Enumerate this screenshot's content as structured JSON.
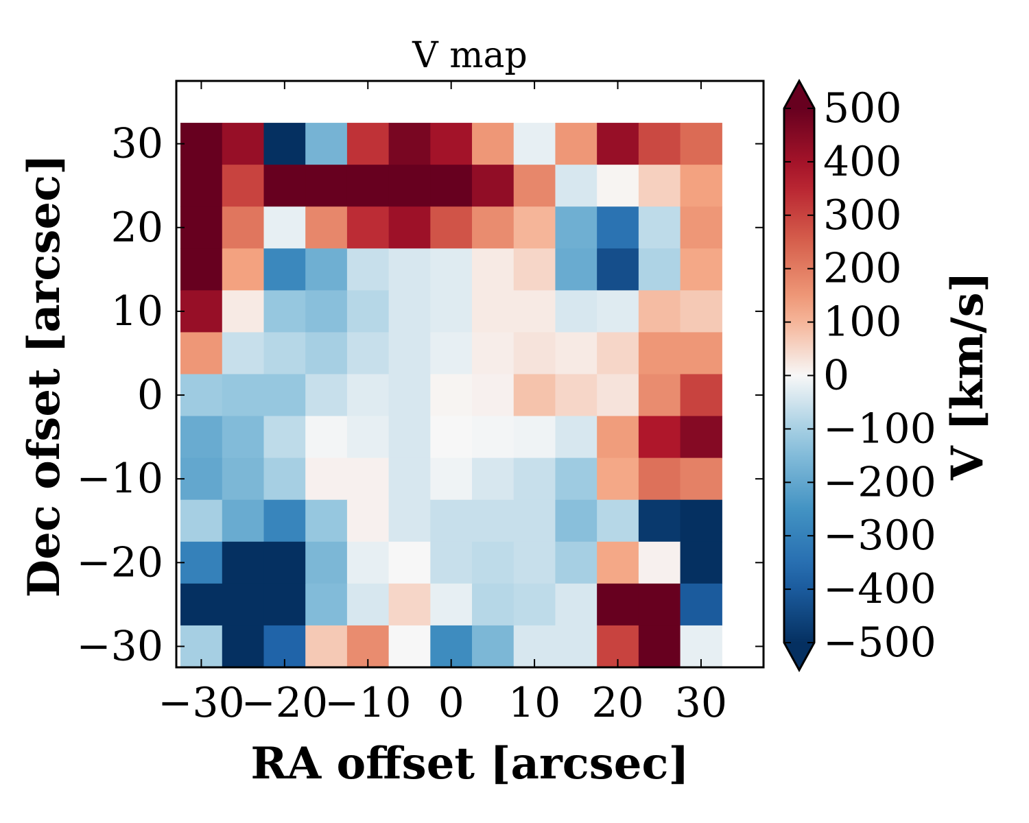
{
  "chart_data": {
    "type": "heatmap",
    "title": "V map",
    "xlabel": "RA offset [arcsec]",
    "ylabel": "Dec ofset [arcsec]",
    "colorbar_label": "V [km/s]",
    "colormap": "RdBu_r",
    "vmin": -500,
    "vmax": 500,
    "colorbar_extend": "both",
    "xlim": [
      -33,
      37.5
    ],
    "ylim": [
      -32.5,
      37.5
    ],
    "x_ticks": [
      -30,
      -20,
      -10,
      0,
      10,
      20,
      30
    ],
    "x_tick_labels": [
      "−30",
      "−20",
      "−10",
      "0",
      "10",
      "20",
      "30"
    ],
    "y_ticks": [
      -30,
      -20,
      -10,
      0,
      10,
      20,
      30
    ],
    "y_tick_labels": [
      "−30",
      "−20",
      "−10",
      "0",
      "10",
      "20",
      "30"
    ],
    "colorbar_ticks": [
      500,
      400,
      300,
      200,
      100,
      0,
      -100,
      -200,
      -300,
      -400,
      -500
    ],
    "colorbar_tick_labels": [
      "500",
      "400",
      "300",
      "200",
      "100",
      "0",
      "−100",
      "−200",
      "−300",
      "−400",
      "−500"
    ],
    "x_centers": [
      -30,
      -25,
      -20,
      -15,
      -10,
      -5,
      0,
      5,
      10,
      15,
      20,
      25,
      30
    ],
    "y_centers": [
      30,
      25,
      20,
      15,
      10,
      5,
      0,
      -5,
      -10,
      -15,
      -20,
      -25,
      -30
    ],
    "cell_size": 5,
    "values": [
      [
        600,
        420,
        -550,
        -170,
        330,
        470,
        400,
        150,
        -20,
        150,
        420,
        290,
        230
      ],
      [
        600,
        300,
        600,
        600,
        600,
        600,
        600,
        430,
        180,
        -40,
        5,
        60,
        130
      ],
      [
        600,
        210,
        -20,
        180,
        340,
        410,
        270,
        170,
        100,
        -180,
        -340,
        -70,
        150
      ],
      [
        600,
        130,
        -280,
        -180,
        -60,
        -40,
        -30,
        20,
        50,
        -190,
        -430,
        -90,
        120
      ],
      [
        420,
        20,
        -120,
        -140,
        -80,
        -40,
        -30,
        20,
        20,
        -40,
        -30,
        90,
        70
      ],
      [
        150,
        -60,
        -80,
        -100,
        -60,
        -40,
        -20,
        15,
        30,
        20,
        50,
        150,
        150
      ],
      [
        -110,
        -120,
        -120,
        -60,
        -30,
        -40,
        5,
        10,
        80,
        50,
        30,
        170,
        300
      ],
      [
        -190,
        -150,
        -70,
        -5,
        -20,
        -40,
        0,
        -5,
        -10,
        -40,
        140,
        380,
        450
      ],
      [
        -200,
        -160,
        -100,
        10,
        10,
        -40,
        -10,
        -40,
        -60,
        -110,
        120,
        220,
        190
      ],
      [
        -100,
        -190,
        -290,
        -120,
        10,
        -40,
        -60,
        -60,
        -60,
        -140,
        -80,
        -480,
        -550
      ],
      [
        -300,
        -550,
        -550,
        -160,
        -20,
        0,
        -60,
        -70,
        -60,
        -100,
        120,
        10,
        -550
      ],
      [
        -550,
        -550,
        -550,
        -150,
        -40,
        50,
        -20,
        -80,
        -70,
        -40,
        600,
        600,
        -400
      ],
      [
        -100,
        -550,
        -380,
        70,
        170,
        0,
        -270,
        -160,
        -40,
        -40,
        300,
        600,
        -20
      ]
    ]
  }
}
